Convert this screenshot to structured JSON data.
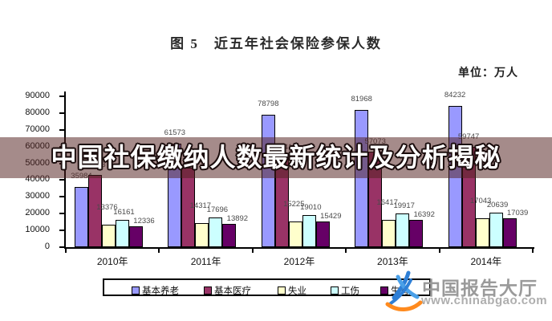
{
  "title": "图 5　近五年社会保险参保人数",
  "unit_label": "单位：万人",
  "banner": {
    "text": "中国社保缴纳人数最新统计及分析揭秘",
    "bg_color": "#52201E",
    "text_color": "#FFFFFF"
  },
  "watermark": {
    "site_name": "中国报告大厅",
    "site_url": "www.chinabgao.com",
    "logo": "chinabgao-logo"
  },
  "chart_data": {
    "type": "bar",
    "title": "图 5 近五年社会保险参保人数",
    "unit": "万人",
    "categories": [
      "2010年",
      "2011年",
      "2012年",
      "2013年",
      "2014年"
    ],
    "series": [
      {
        "name": "基本养老",
        "color": "#9999FF",
        "values": [
          35984,
          61573,
          78798,
          81968,
          84232
        ]
      },
      {
        "name": "基本医疗",
        "color": "#993366",
        "values": [
          43263,
          47343,
          53641,
          57073,
          59747
        ]
      },
      {
        "name": "失业",
        "color": "#FFFFCC",
        "values": [
          13376,
          14317,
          15225,
          16417,
          17043
        ]
      },
      {
        "name": "工伤",
        "color": "#CCFFFF",
        "values": [
          16161,
          17696,
          19010,
          19917,
          20639
        ]
      },
      {
        "name": "生育",
        "color": "#660066",
        "values": [
          12336,
          13892,
          15429,
          16392,
          17039
        ]
      }
    ],
    "ylim": [
      0,
      90000
    ],
    "ytick_step": 10000,
    "yticks": [
      "0",
      "10000",
      "20000",
      "30000",
      "40000",
      "50000",
      "60000",
      "70000",
      "80000",
      "90000"
    ],
    "grid": false,
    "legend_position": "bottom",
    "bar_labels": "value above each bar"
  }
}
